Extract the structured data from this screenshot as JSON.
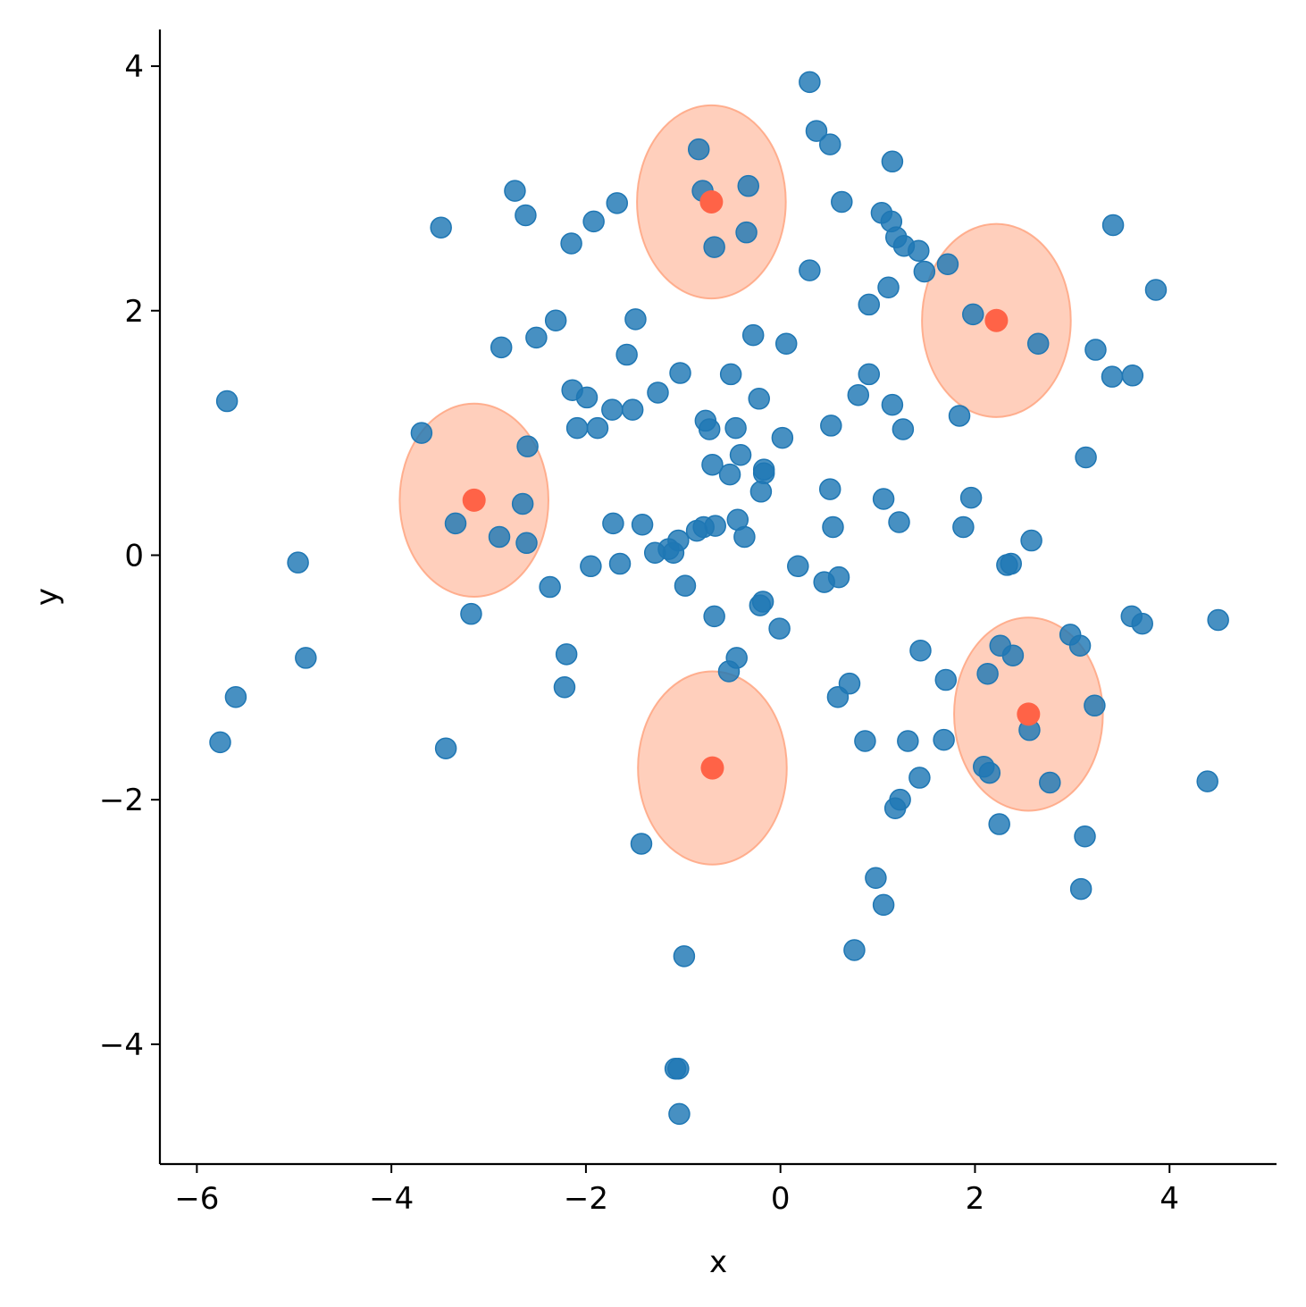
{
  "chart_data": {
    "type": "scatter",
    "title": "",
    "xlabel": "x",
    "ylabel": "y",
    "xlim": [
      -6.38,
      5.1
    ],
    "ylim": [
      -4.98,
      4.3
    ],
    "x_ticks": [
      -6,
      -4,
      -2,
      0,
      2,
      4
    ],
    "y_ticks": [
      -4,
      -2,
      0,
      2,
      4
    ],
    "grid": false,
    "colors": {
      "points": "#1f77b4",
      "centers": "#ff6347",
      "ellipse_fill": "#ffa07a",
      "ellipse_edge": "#ffa07a"
    },
    "series": [
      {
        "values": [
          [
            0.3,
            3.87
          ],
          [
            0.37,
            3.47
          ],
          [
            0.51,
            3.36
          ],
          [
            -0.84,
            3.32
          ],
          [
            -0.33,
            3.02
          ],
          [
            -0.8,
            2.98
          ],
          [
            -2.73,
            2.98
          ],
          [
            1.15,
            3.22
          ],
          [
            -1.68,
            2.88
          ],
          [
            0.63,
            2.89
          ],
          [
            1.04,
            2.8
          ],
          [
            -2.62,
            2.78
          ],
          [
            -1.92,
            2.73
          ],
          [
            1.14,
            2.73
          ],
          [
            3.42,
            2.7
          ],
          [
            -3.49,
            2.68
          ],
          [
            -0.35,
            2.64
          ],
          [
            1.19,
            2.6
          ],
          [
            -2.15,
            2.55
          ],
          [
            -0.68,
            2.52
          ],
          [
            1.27,
            2.53
          ],
          [
            1.42,
            2.49
          ],
          [
            1.72,
            2.38
          ],
          [
            1.48,
            2.32
          ],
          [
            0.3,
            2.33
          ],
          [
            1.11,
            2.19
          ],
          [
            3.86,
            2.17
          ],
          [
            0.91,
            2.05
          ],
          [
            1.98,
            1.97
          ],
          [
            -1.49,
            1.93
          ],
          [
            -2.31,
            1.92
          ],
          [
            -2.51,
            1.78
          ],
          [
            -0.28,
            1.8
          ],
          [
            0.06,
            1.73
          ],
          [
            -2.87,
            1.7
          ],
          [
            2.65,
            1.73
          ],
          [
            3.24,
            1.68
          ],
          [
            -1.58,
            1.64
          ],
          [
            -1.03,
            1.49
          ],
          [
            -0.51,
            1.48
          ],
          [
            0.91,
            1.48
          ],
          [
            3.41,
            1.46
          ],
          [
            3.62,
            1.47
          ],
          [
            -2.14,
            1.35
          ],
          [
            -1.26,
            1.33
          ],
          [
            -1.99,
            1.29
          ],
          [
            0.8,
            1.31
          ],
          [
            -0.22,
            1.28
          ],
          [
            -1.73,
            1.19
          ],
          [
            -1.52,
            1.19
          ],
          [
            1.15,
            1.23
          ],
          [
            1.84,
            1.14
          ],
          [
            -0.77,
            1.1
          ],
          [
            0.52,
            1.06
          ],
          [
            -0.46,
            1.04
          ],
          [
            -2.09,
            1.04
          ],
          [
            -1.88,
            1.04
          ],
          [
            -0.73,
            1.03
          ],
          [
            1.26,
            1.03
          ],
          [
            -3.69,
            1.0
          ],
          [
            0.02,
            0.96
          ],
          [
            -2.6,
            0.89
          ],
          [
            -0.41,
            0.82
          ],
          [
            3.14,
            0.8
          ],
          [
            -0.7,
            0.74
          ],
          [
            -0.17,
            0.7
          ],
          [
            -0.52,
            0.66
          ],
          [
            -0.17,
            0.67
          ],
          [
            0.51,
            0.54
          ],
          [
            -0.2,
            0.52
          ],
          [
            1.06,
            0.46
          ],
          [
            1.96,
            0.47
          ],
          [
            -2.65,
            0.42
          ],
          [
            -0.44,
            0.29
          ],
          [
            -3.34,
            0.26
          ],
          [
            -1.72,
            0.26
          ],
          [
            -1.42,
            0.25
          ],
          [
            1.22,
            0.27
          ],
          [
            1.88,
            0.23
          ],
          [
            0.54,
            0.23
          ],
          [
            -0.67,
            0.24
          ],
          [
            -0.79,
            0.23
          ],
          [
            -0.86,
            0.2
          ],
          [
            -2.89,
            0.15
          ],
          [
            -0.37,
            0.15
          ],
          [
            -2.61,
            0.1
          ],
          [
            2.58,
            0.12
          ],
          [
            -1.05,
            0.12
          ],
          [
            -1.15,
            0.05
          ],
          [
            -1.29,
            0.02
          ],
          [
            -1.1,
            0.02
          ],
          [
            -4.96,
            -0.06
          ],
          [
            -1.95,
            -0.09
          ],
          [
            -1.65,
            -0.07
          ],
          [
            0.18,
            -0.09
          ],
          [
            2.33,
            -0.08
          ],
          [
            2.37,
            -0.07
          ],
          [
            0.6,
            -0.18
          ],
          [
            0.45,
            -0.22
          ],
          [
            -2.37,
            -0.26
          ],
          [
            -0.98,
            -0.25
          ],
          [
            -0.18,
            -0.38
          ],
          [
            -0.21,
            -0.41
          ],
          [
            -3.18,
            -0.48
          ],
          [
            -0.68,
            -0.5
          ],
          [
            3.61,
            -0.5
          ],
          [
            3.72,
            -0.56
          ],
          [
            4.5,
            -0.53
          ],
          [
            -0.01,
            -0.6
          ],
          [
            2.98,
            -0.65
          ],
          [
            3.08,
            -0.74
          ],
          [
            2.26,
            -0.74
          ],
          [
            1.44,
            -0.78
          ],
          [
            -2.2,
            -0.81
          ],
          [
            2.39,
            -0.82
          ],
          [
            -0.45,
            -0.84
          ],
          [
            -4.88,
            -0.84
          ],
          [
            -0.53,
            -0.95
          ],
          [
            2.13,
            -0.97
          ],
          [
            1.7,
            -1.02
          ],
          [
            0.71,
            -1.05
          ],
          [
            -2.22,
            -1.08
          ],
          [
            0.59,
            -1.16
          ],
          [
            -5.6,
            -1.16
          ],
          [
            3.23,
            -1.23
          ],
          [
            2.56,
            -1.43
          ],
          [
            0.87,
            -1.52
          ],
          [
            1.31,
            -1.52
          ],
          [
            1.68,
            -1.51
          ],
          [
            -5.76,
            -1.53
          ],
          [
            -3.44,
            -1.58
          ],
          [
            2.09,
            -1.73
          ],
          [
            2.15,
            -1.78
          ],
          [
            1.43,
            -1.82
          ],
          [
            4.39,
            -1.85
          ],
          [
            2.77,
            -1.86
          ],
          [
            1.23,
            -2.0
          ],
          [
            1.18,
            -2.07
          ],
          [
            2.25,
            -2.2
          ],
          [
            3.13,
            -2.3
          ],
          [
            -1.43,
            -2.36
          ],
          [
            0.98,
            -2.64
          ],
          [
            3.09,
            -2.73
          ],
          [
            1.06,
            -2.86
          ],
          [
            0.76,
            -3.23
          ],
          [
            -0.99,
            -3.28
          ],
          [
            -1.08,
            -4.2
          ],
          [
            -1.05,
            -4.2
          ],
          [
            -1.04,
            -4.57
          ],
          [
            -5.69,
            1.26
          ]
        ]
      },
      {
        "values": [
          [
            -0.71,
            2.89
          ],
          [
            2.22,
            1.92
          ],
          [
            -3.15,
            0.45
          ],
          [
            2.55,
            -1.3
          ],
          [
            -0.7,
            -1.74
          ]
        ],
        "ellipse": {
          "width": 1.53,
          "height": 1.58
        }
      }
    ]
  }
}
